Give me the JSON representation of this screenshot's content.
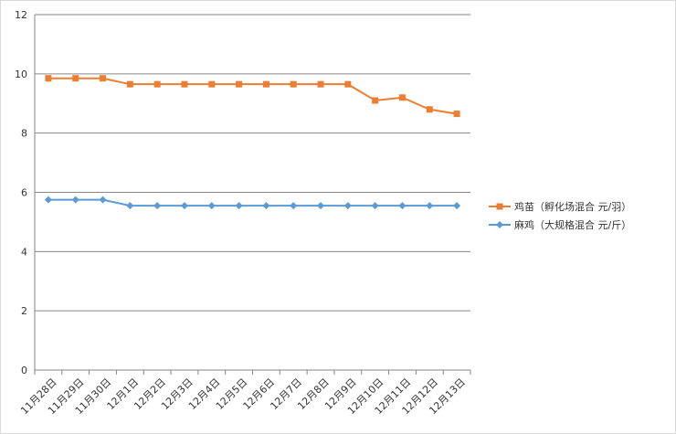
{
  "chart_data": {
    "type": "line",
    "categories": [
      "11月28日",
      "11月29日",
      "11月30日",
      "12月1日",
      "12月2日",
      "12月3日",
      "12月4日",
      "12月5日",
      "12月6日",
      "12月7日",
      "12月8日",
      "12月9日",
      "12月10日",
      "12月11日",
      "12月12日",
      "12月13日"
    ],
    "series": [
      {
        "name": "鸡苗（孵化场混合 元/羽）",
        "color": "#ed7d31",
        "marker": "square",
        "values": [
          9.85,
          9.85,
          9.85,
          9.65,
          9.65,
          9.65,
          9.65,
          9.65,
          9.65,
          9.65,
          9.65,
          9.65,
          9.1,
          9.2,
          8.8,
          8.65
        ]
      },
      {
        "name": "麻鸡（大规格混合 元/斤）",
        "color": "#5b9bd5",
        "marker": "diamond",
        "values": [
          5.75,
          5.75,
          5.75,
          5.55,
          5.55,
          5.55,
          5.55,
          5.55,
          5.55,
          5.55,
          5.55,
          5.55,
          5.55,
          5.55,
          5.55,
          5.55
        ]
      }
    ],
    "ylim": [
      0,
      12
    ],
    "yticks": [
      0,
      2,
      4,
      6,
      8,
      10,
      12
    ],
    "grid": true,
    "legend": "right"
  }
}
